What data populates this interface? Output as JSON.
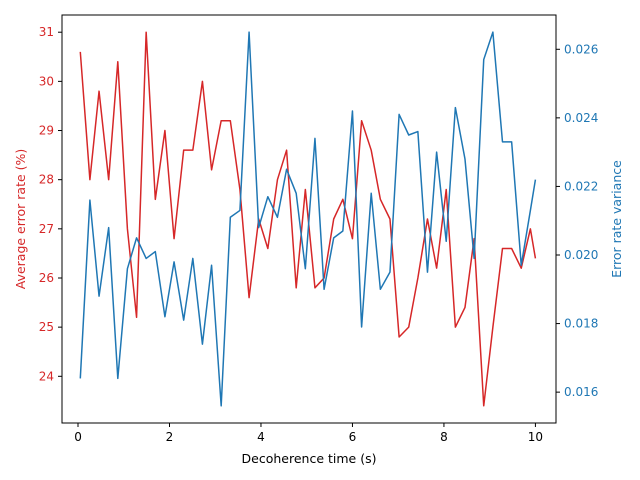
{
  "chart_data": {
    "type": "line",
    "title": "",
    "xlabel": "Decoherence time (s)",
    "xlim": [
      -0.35,
      10.45
    ],
    "x_ticks": [
      0,
      2,
      4,
      6,
      8,
      10
    ],
    "left_axis": {
      "label": "Average error rate (%)",
      "color": "#d62728",
      "ylim": [
        23.05,
        31.35
      ],
      "ticks": [
        24,
        25,
        26,
        27,
        28,
        29,
        30,
        31
      ]
    },
    "right_axis": {
      "label": "Error rate variance",
      "color": "#1f77b4",
      "ylim": [
        0.0151,
        0.027
      ],
      "ticks": [
        0.016,
        0.018,
        0.02,
        0.022,
        0.024,
        0.026
      ]
    },
    "x": [
      0.05,
      0.26,
      0.46,
      0.67,
      0.87,
      1.08,
      1.28,
      1.49,
      1.69,
      1.9,
      2.1,
      2.31,
      2.51,
      2.72,
      2.92,
      3.13,
      3.33,
      3.54,
      3.74,
      3.95,
      4.15,
      4.36,
      4.56,
      4.77,
      4.97,
      5.18,
      5.38,
      5.59,
      5.79,
      6.0,
      6.2,
      6.41,
      6.61,
      6.82,
      7.02,
      7.23,
      7.43,
      7.64,
      7.84,
      8.05,
      8.25,
      8.46,
      8.66,
      8.87,
      9.07,
      9.28,
      9.48,
      9.69,
      9.89,
      10.0
    ],
    "series": [
      {
        "name": "Average error rate (%)",
        "axis": "left",
        "color": "#d62728",
        "values": [
          30.6,
          28.0,
          29.8,
          28.0,
          30.4,
          27.0,
          25.2,
          31.0,
          27.6,
          29.0,
          26.8,
          28.6,
          28.6,
          30.0,
          28.2,
          29.2,
          29.2,
          27.8,
          25.6,
          27.2,
          26.6,
          28.0,
          28.6,
          25.8,
          27.8,
          25.8,
          26.0,
          27.2,
          27.6,
          26.8,
          29.2,
          28.6,
          27.6,
          27.2,
          24.8,
          25.0,
          26.0,
          27.2,
          26.2,
          27.8,
          25.0,
          25.4,
          26.8,
          23.4,
          25.0,
          26.6,
          26.6,
          26.2,
          27.0,
          26.4
        ]
      },
      {
        "name": "Error rate variance",
        "axis": "right",
        "color": "#1f77b4",
        "values": [
          0.0164,
          0.0216,
          0.0188,
          0.0208,
          0.0164,
          0.0196,
          0.0205,
          0.0199,
          0.0201,
          0.0182,
          0.0198,
          0.0181,
          0.0199,
          0.0174,
          0.0197,
          0.0156,
          0.0211,
          0.0213,
          0.0265,
          0.0208,
          0.0217,
          0.0211,
          0.0225,
          0.0218,
          0.0196,
          0.0234,
          0.019,
          0.0205,
          0.0207,
          0.0242,
          0.0179,
          0.0218,
          0.019,
          0.0195,
          0.0241,
          0.0235,
          0.0236,
          0.0195,
          0.023,
          0.0204,
          0.0243,
          0.0228,
          0.0199,
          0.0257,
          0.0265,
          0.0233,
          0.0233,
          0.0197,
          0.0213,
          0.0222
        ]
      }
    ],
    "grid": false,
    "legend": "none"
  }
}
